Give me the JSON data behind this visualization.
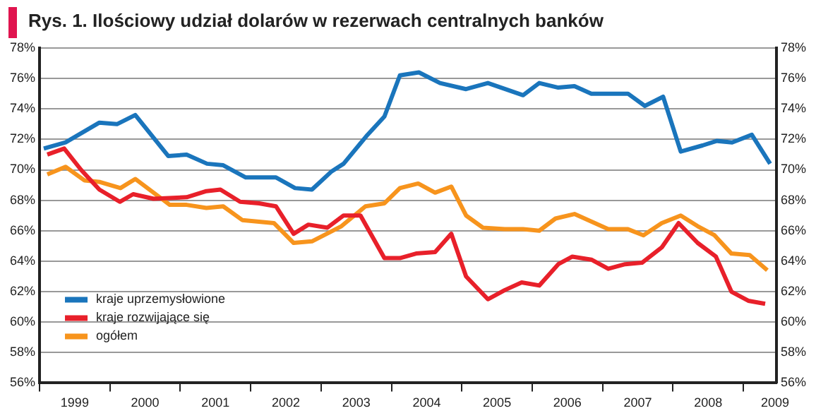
{
  "chart_data": {
    "type": "line",
    "title": "Rys. 1. Ilościowy udział dolarów w rezerwach centralnych banków",
    "xlim": [
      1999,
      2009.47
    ],
    "xticks": [
      {
        "value": 1999,
        "label": null
      },
      {
        "value": 1999.5,
        "label": "1999"
      },
      {
        "value": 2000,
        "label": null
      },
      {
        "value": 2000.5,
        "label": "2000"
      },
      {
        "value": 2001,
        "label": null
      },
      {
        "value": 2001.5,
        "label": "2001"
      },
      {
        "value": 2002,
        "label": null
      },
      {
        "value": 2002.5,
        "label": "2002"
      },
      {
        "value": 2003,
        "label": null
      },
      {
        "value": 2003.5,
        "label": "2003"
      },
      {
        "value": 2004,
        "label": null
      },
      {
        "value": 2004.5,
        "label": "2004"
      },
      {
        "value": 2005,
        "label": null
      },
      {
        "value": 2005.5,
        "label": "2005"
      },
      {
        "value": 2006,
        "label": null
      },
      {
        "value": 2006.5,
        "label": "2006"
      },
      {
        "value": 2007,
        "label": null
      },
      {
        "value": 2007.5,
        "label": "2007"
      },
      {
        "value": 2008,
        "label": null
      },
      {
        "value": 2008.5,
        "label": "2008"
      },
      {
        "value": 2009,
        "label": null
      },
      {
        "value": 2009.45,
        "label": "2009"
      }
    ],
    "ylim": [
      56,
      78
    ],
    "yticks": [
      {
        "value": 56,
        "label": "56%"
      },
      {
        "value": 58,
        "label": "58%"
      },
      {
        "value": 60,
        "label": "60%"
      },
      {
        "value": 62,
        "label": "62%"
      },
      {
        "value": 64,
        "label": "64%"
      },
      {
        "value": 66,
        "label": "66%"
      },
      {
        "value": 68,
        "label": "68%"
      },
      {
        "value": 70,
        "label": "70%"
      },
      {
        "value": 72,
        "label": "72%"
      },
      {
        "value": 74,
        "label": "74%"
      },
      {
        "value": 76,
        "label": "76%"
      },
      {
        "value": 78,
        "label": "78%"
      }
    ],
    "y2lim": [
      56,
      78
    ],
    "y2ticks": [
      {
        "value": 56,
        "label": "56%"
      },
      {
        "value": 58,
        "label": "58%"
      },
      {
        "value": 60,
        "label": "60%"
      },
      {
        "value": 62,
        "label": "62%"
      },
      {
        "value": 64,
        "label": "64%"
      },
      {
        "value": 66,
        "label": "66%"
      },
      {
        "value": 68,
        "label": "68%"
      },
      {
        "value": 70,
        "label": "70%"
      },
      {
        "value": 72,
        "label": "72%"
      },
      {
        "value": 74,
        "label": "74%"
      },
      {
        "value": 76,
        "label": "76%"
      },
      {
        "value": 78,
        "label": "78%"
      }
    ],
    "grid": "y",
    "legend": "bottom left",
    "marker": "none",
    "line_style": "solid",
    "series": [
      {
        "name": "kraje uprzemysłowione",
        "color": "#1a75bc",
        "x": [
          1999.06,
          1999.37,
          1999.85,
          2000.1,
          2000.36,
          2000.83,
          2001.09,
          2001.38,
          2001.61,
          2001.93,
          2002.36,
          2002.63,
          2002.87,
          2003.15,
          2003.32,
          2003.66,
          2003.9,
          2004.12,
          2004.39,
          2004.69,
          2005.06,
          2005.37,
          2005.87,
          2006.1,
          2006.37,
          2006.6,
          2006.84,
          2007.12,
          2007.36,
          2007.6,
          2007.86,
          2008.11,
          2008.42,
          2008.62,
          2008.84,
          2009.12,
          2009.38
        ],
        "values": [
          71.4,
          71.8,
          73.1,
          73.0,
          73.6,
          70.9,
          71.0,
          70.4,
          70.3,
          69.5,
          69.5,
          68.8,
          68.7,
          69.9,
          70.4,
          72.3,
          73.5,
          76.2,
          76.4,
          75.7,
          75.3,
          75.7,
          74.9,
          75.7,
          75.4,
          75.5,
          75.0,
          75.0,
          75.0,
          74.2,
          74.8,
          71.2,
          71.6,
          71.9,
          71.8,
          72.3,
          70.4
        ]
      },
      {
        "name": "kraje rozwijające się",
        "color": "#e8202a",
        "x": [
          1999.11,
          1999.35,
          1999.59,
          1999.85,
          2000.14,
          2000.33,
          2000.62,
          2001.09,
          2001.37,
          2001.57,
          2001.85,
          2002.12,
          2002.36,
          2002.61,
          2002.82,
          2003.09,
          2003.32,
          2003.56,
          2003.9,
          2004.12,
          2004.35,
          2004.62,
          2004.85,
          2005.06,
          2005.37,
          2005.61,
          2005.85,
          2006.1,
          2006.37,
          2006.57,
          2006.84,
          2007.08,
          2007.32,
          2007.56,
          2007.84,
          2008.08,
          2008.35,
          2008.61,
          2008.83,
          2009.07,
          2009.31
        ],
        "values": [
          71.0,
          71.4,
          70.0,
          68.7,
          67.9,
          68.4,
          68.1,
          68.2,
          68.6,
          68.7,
          67.9,
          67.8,
          67.6,
          65.8,
          66.4,
          66.2,
          67.0,
          67.0,
          64.2,
          64.2,
          64.5,
          64.6,
          65.8,
          63.0,
          61.5,
          62.1,
          62.6,
          62.4,
          63.8,
          64.3,
          64.1,
          63.5,
          63.8,
          63.9,
          64.9,
          66.5,
          65.2,
          64.3,
          62.0,
          61.4,
          61.2
        ]
      },
      {
        "name": "ogółem",
        "color": "#f7941d",
        "x": [
          1999.11,
          1999.37,
          1999.64,
          1999.86,
          2000.15,
          2000.36,
          2000.85,
          2001.09,
          2001.37,
          2001.61,
          2001.88,
          2002.33,
          2002.61,
          2002.87,
          2003.29,
          2003.63,
          2003.9,
          2004.12,
          2004.38,
          2004.62,
          2004.85,
          2005.06,
          2005.3,
          2005.61,
          2005.87,
          2006.1,
          2006.33,
          2006.6,
          2006.84,
          2007.08,
          2007.36,
          2007.58,
          2007.84,
          2008.11,
          2008.35,
          2008.59,
          2008.83,
          2009.09,
          2009.34
        ],
        "values": [
          69.7,
          70.2,
          69.3,
          69.2,
          68.8,
          69.4,
          67.7,
          67.7,
          67.5,
          67.6,
          66.7,
          66.5,
          65.2,
          65.3,
          66.3,
          67.6,
          67.8,
          68.8,
          69.1,
          68.5,
          68.9,
          67.0,
          66.2,
          66.1,
          66.1,
          66.0,
          66.8,
          67.1,
          66.6,
          66.1,
          66.1,
          65.7,
          66.5,
          67.0,
          66.3,
          65.7,
          64.5,
          64.4,
          63.4
        ]
      }
    ]
  }
}
